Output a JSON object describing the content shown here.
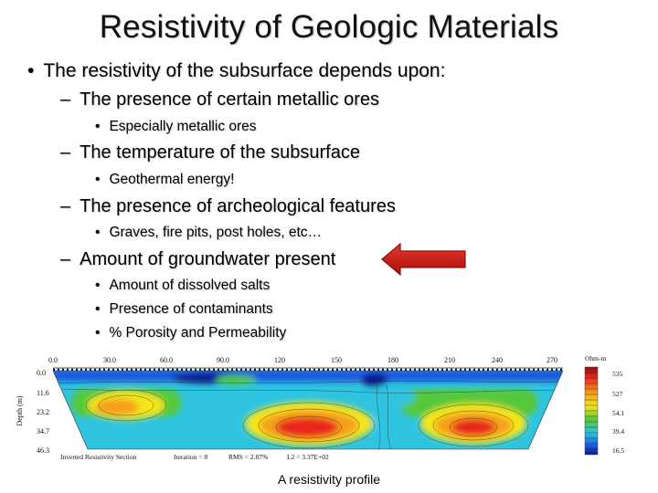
{
  "slide": {
    "title": "Resistivity of Geologic Materials",
    "lines": [
      {
        "level": 1,
        "marker": "•",
        "text": "The resistivity of the subsurface depends upon:"
      },
      {
        "level": 2,
        "marker": "–",
        "text": "The presence of certain metallic ores"
      },
      {
        "level": 3,
        "marker": "•",
        "text": "Especially metallic ores"
      },
      {
        "level": 2,
        "marker": "–",
        "text": "The temperature of the subsurface"
      },
      {
        "level": 3,
        "marker": "•",
        "text": "Geothermal energy!"
      },
      {
        "level": 2,
        "marker": "–",
        "text": "The presence of archeological features"
      },
      {
        "level": 3,
        "marker": "•",
        "text": "Graves, fire pits, post holes, etc…"
      },
      {
        "level": 2,
        "marker": "–",
        "text": "Amount of groundwater present"
      },
      {
        "level": 3,
        "marker": "•",
        "text": "Amount of dissolved salts"
      },
      {
        "level": 3,
        "marker": "•",
        "text": "Presence of contaminants"
      },
      {
        "level": 3,
        "marker": "•",
        "text": "% Porosity and Permeability"
      }
    ],
    "caption": "A resistivity profile"
  },
  "figure": {
    "x_ticks": [
      "0.0",
      "30.0",
      "60.0",
      "90.0",
      "120",
      "150",
      "180",
      "210",
      "240",
      "270"
    ],
    "y_ticks": [
      "0.0",
      "11.6",
      "23.2",
      "34.7",
      "46.3"
    ],
    "y_label": "Depth (m)",
    "legend_title": "Ohm-m",
    "legend_values": [
      "535",
      "527",
      "54.1",
      "39.4",
      "16.5"
    ],
    "footer": {
      "section": "Inverted Resistivity Section",
      "iteration": "Iteration = 8",
      "rms": "RMS = 2.87%",
      "l2": "L2 = 3.37E+02"
    },
    "colors": {
      "red": "#e8281e",
      "orange": "#f5a01e",
      "yellow": "#f4e51e",
      "green": "#56c83a",
      "cyan": "#2ec4e0",
      "blue": "#1a5ae0",
      "navy": "#0a1a8a"
    }
  },
  "arrow": {
    "color": "#c81414"
  }
}
